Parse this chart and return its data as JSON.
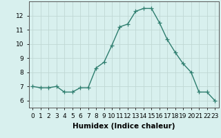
{
  "x": [
    0,
    1,
    2,
    3,
    4,
    5,
    6,
    7,
    8,
    9,
    10,
    11,
    12,
    13,
    14,
    15,
    16,
    17,
    18,
    19,
    20,
    21,
    22,
    23
  ],
  "y": [
    7.0,
    6.9,
    6.9,
    7.0,
    6.6,
    6.6,
    6.9,
    6.9,
    8.3,
    8.7,
    9.9,
    11.2,
    11.4,
    12.3,
    12.5,
    12.5,
    11.5,
    10.3,
    9.4,
    8.6,
    8.0,
    6.6,
    6.6,
    6.0
  ],
  "line_color": "#2d7d6e",
  "marker": "+",
  "marker_size": 4,
  "line_width": 1.0,
  "bg_color": "#d8f0ee",
  "grid_color": "#c0d8d4",
  "xlabel": "Humidex (Indice chaleur)",
  "xlim": [
    -0.5,
    23.5
  ],
  "ylim": [
    5.5,
    13.0
  ],
  "yticks": [
    6,
    7,
    8,
    9,
    10,
    11,
    12
  ],
  "xticks": [
    0,
    1,
    2,
    3,
    4,
    5,
    6,
    7,
    8,
    9,
    10,
    11,
    12,
    13,
    14,
    15,
    16,
    17,
    18,
    19,
    20,
    21,
    22,
    23
  ],
  "tick_fontsize": 6.5,
  "xlabel_fontsize": 7.5
}
